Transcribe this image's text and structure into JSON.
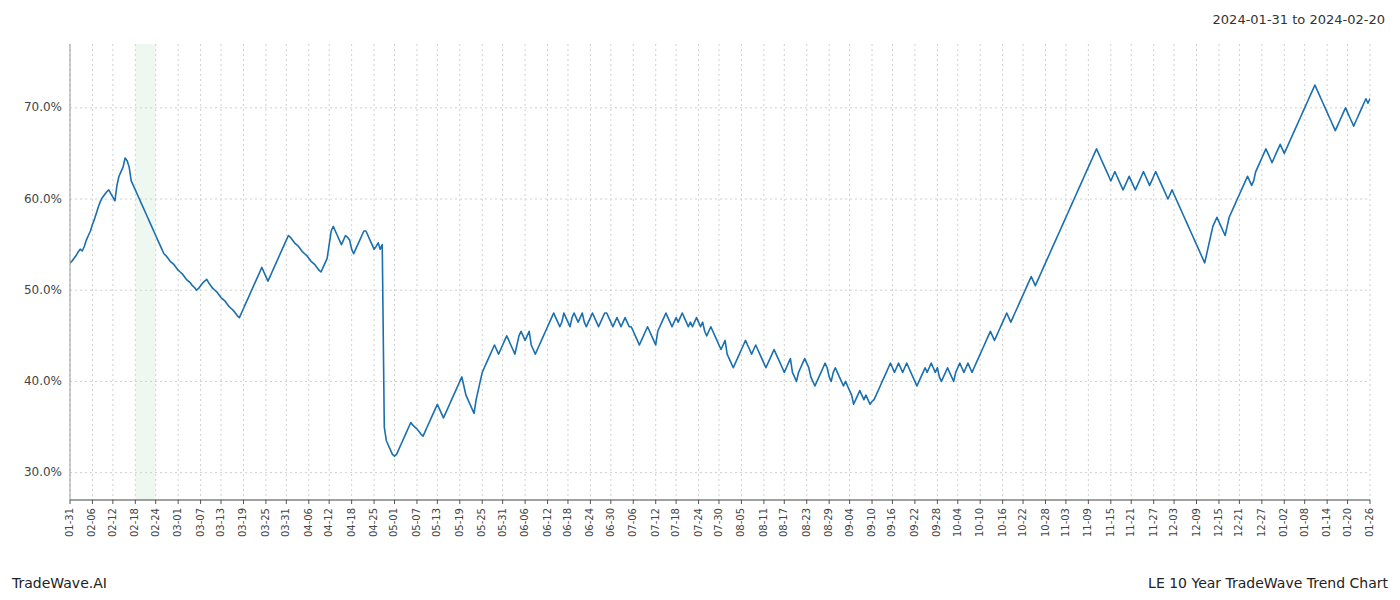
{
  "chart_data": {
    "type": "line",
    "title": "2024-01-31 to 2024-02-20",
    "annotations": [
      "TradeWave.AI",
      "LE 10 Year TradeWave Trend Chart"
    ],
    "color": "#1a6faf",
    "grid": true,
    "highlight": {
      "start": "02-18",
      "end": "02-24",
      "color": "#e8f5e9"
    },
    "ylim": [
      27.0,
      77.0
    ],
    "yticks": [
      {
        "value": 30,
        "label": "30.0%"
      },
      {
        "value": 40,
        "label": "40.0%"
      },
      {
        "value": 50,
        "label": "50.0%"
      },
      {
        "value": 60,
        "label": "60.0%"
      },
      {
        "value": 70,
        "label": "70.0%"
      }
    ],
    "categories": [
      "01-31",
      null,
      null,
      null,
      null,
      null,
      null,
      null,
      null,
      null,
      null,
      "02-06",
      null,
      null,
      null,
      null,
      null,
      null,
      null,
      null,
      null,
      "02-12",
      null,
      null,
      null,
      null,
      null,
      null,
      null,
      null,
      null,
      null,
      "02-18",
      null,
      null,
      null,
      null,
      null,
      null,
      null,
      null,
      null,
      "02-24",
      null,
      null,
      null,
      null,
      null,
      null,
      null,
      null,
      null,
      null,
      "03-01",
      null,
      null,
      null,
      null,
      null,
      null,
      null,
      null,
      null,
      null,
      "03-07",
      null,
      null,
      null,
      null,
      null,
      null,
      null,
      null,
      null,
      "03-13",
      null,
      null,
      null,
      null,
      null,
      null,
      null,
      null,
      null,
      null,
      "03-19",
      null,
      null,
      null,
      null,
      null,
      null,
      null,
      null,
      null,
      null,
      "03-25",
      null,
      null,
      null,
      null,
      null,
      null,
      null,
      null,
      null,
      "03-31",
      null,
      null,
      null,
      null,
      null,
      null,
      null,
      null,
      null,
      null,
      "04-06",
      null,
      null,
      null,
      null,
      null,
      null,
      null,
      null,
      null,
      "04-12",
      null,
      null,
      null,
      null,
      null,
      null,
      null,
      null,
      null,
      null,
      "04-18",
      null,
      null,
      null,
      null,
      null,
      null,
      null,
      null,
      null,
      null,
      "04-25",
      null,
      null,
      null,
      null,
      null,
      null,
      null,
      null,
      null,
      "05-01",
      null,
      null,
      null,
      null,
      null,
      null,
      null,
      null,
      null,
      null,
      "05-07",
      null,
      null,
      null,
      null,
      null,
      null,
      null,
      null,
      null,
      "05-13",
      null,
      null,
      null,
      null,
      null,
      null,
      null,
      null,
      null,
      null,
      "05-19",
      null,
      null,
      null,
      null,
      null,
      null,
      null,
      null,
      null,
      null,
      "05-25",
      null,
      null,
      null,
      null,
      null,
      null,
      null,
      null,
      null,
      "05-31",
      null,
      null,
      null,
      null,
      null,
      null,
      null,
      null,
      null,
      null,
      "06-06",
      null,
      null,
      null,
      null,
      null,
      null,
      null,
      null,
      null,
      null,
      "06-12",
      null,
      null,
      null,
      null,
      null,
      null,
      null,
      null,
      null,
      "06-18",
      null,
      null,
      null,
      null,
      null,
      null,
      null,
      null,
      null,
      null,
      "06-24",
      null,
      null,
      null,
      null,
      null,
      null,
      null,
      null,
      null,
      "06-30",
      null,
      null,
      null,
      null,
      null,
      null,
      null,
      null,
      null,
      null,
      "07-06",
      null,
      null,
      null,
      null,
      null,
      null,
      null,
      null,
      null,
      null,
      "07-12",
      null,
      null,
      null,
      null,
      null,
      null,
      null,
      null,
      null,
      "07-18",
      null,
      null,
      null,
      null,
      null,
      null,
      null,
      null,
      null,
      null,
      "07-24",
      null,
      null,
      null,
      null,
      null,
      null,
      null,
      null,
      null,
      "07-30",
      null,
      null,
      null,
      null,
      null,
      null,
      null,
      null,
      null,
      null,
      "08-05",
      null,
      null,
      null,
      null,
      null,
      null,
      null,
      null,
      null,
      null,
      "08-11",
      null,
      null,
      null,
      null,
      null,
      null,
      null,
      null,
      null,
      "08-17",
      null,
      null,
      null,
      null,
      null,
      null,
      null,
      null,
      null,
      null,
      "08-23",
      null,
      null,
      null,
      null,
      null,
      null,
      null,
      null,
      null,
      null,
      "08-29",
      null,
      null,
      null,
      null,
      null,
      null,
      null,
      null,
      null,
      "09-04",
      null,
      null,
      null,
      null,
      null,
      null,
      null,
      null,
      null,
      null,
      "09-10",
      null,
      null,
      null,
      null,
      null,
      null,
      null,
      null,
      null,
      "09-16",
      null,
      null,
      null,
      null,
      null,
      null,
      null,
      null,
      null,
      null,
      "09-22",
      null,
      null,
      null,
      null,
      null,
      null,
      null,
      null,
      null,
      null,
      "09-28",
      null,
      null,
      null,
      null,
      null,
      null,
      null,
      null,
      null,
      "10-04",
      null,
      null,
      null,
      null,
      null,
      null,
      null,
      null,
      null,
      null,
      "10-10",
      null,
      null,
      null,
      null,
      null,
      null,
      null,
      null,
      null,
      null,
      "10-16",
      null,
      null,
      null,
      null,
      null,
      null,
      null,
      null,
      null,
      "10-22",
      null,
      null,
      null,
      null,
      null,
      null,
      null,
      null,
      null,
      null,
      "10-28",
      null,
      null,
      null,
      null,
      null,
      null,
      null,
      null,
      null,
      "11-03",
      null,
      null,
      null,
      null,
      null,
      null,
      null,
      null,
      null,
      null,
      "11-09",
      null,
      null,
      null,
      null,
      null,
      null,
      null,
      null,
      null,
      null,
      "11-15",
      null,
      null,
      null,
      null,
      null,
      null,
      null,
      null,
      null,
      "11-21",
      null,
      null,
      null,
      null,
      null,
      null,
      null,
      null,
      null,
      null,
      "11-27",
      null,
      null,
      null,
      null,
      null,
      null,
      null,
      null,
      null,
      "12-03",
      null,
      null,
      null,
      null,
      null,
      null,
      null,
      null,
      null,
      null,
      "12-09",
      null,
      null,
      null,
      null,
      null,
      null,
      null,
      null,
      null,
      null,
      "12-15",
      null,
      null,
      null,
      null,
      null,
      null,
      null,
      null,
      null,
      "12-21",
      null,
      null,
      null,
      null,
      null,
      null,
      null,
      null,
      null,
      null,
      "12-27",
      null,
      null,
      null,
      null,
      null,
      null,
      null,
      null,
      null,
      null,
      "01-02",
      null,
      null,
      null,
      null,
      null,
      null,
      null,
      null,
      null,
      "01-08",
      null,
      null,
      null,
      null,
      null,
      null,
      null,
      null,
      null,
      null,
      "01-14",
      null,
      null,
      null,
      null,
      null,
      null,
      null,
      null,
      null,
      "01-20",
      null,
      null,
      null,
      null,
      null,
      null,
      null,
      null,
      null,
      null,
      "01-26"
    ],
    "values": [
      53.0,
      53.2,
      53.5,
      53.8,
      54.2,
      54.5,
      54.3,
      54.8,
      55.5,
      56.0,
      56.5,
      57.2,
      57.8,
      58.5,
      59.2,
      59.8,
      60.2,
      60.5,
      60.8,
      61.0,
      60.6,
      60.2,
      59.8,
      61.5,
      62.5,
      63.0,
      63.5,
      64.5,
      64.2,
      63.5,
      62.0,
      61.5,
      61.0,
      60.5,
      60.0,
      59.5,
      59.0,
      58.5,
      58.0,
      57.5,
      57.0,
      56.5,
      56.0,
      55.5,
      55.0,
      54.5,
      54.0,
      53.8,
      53.5,
      53.2,
      53.0,
      52.8,
      52.5,
      52.2,
      52.0,
      51.8,
      51.5,
      51.2,
      51.0,
      50.8,
      50.5,
      50.3,
      50.0,
      50.2,
      50.5,
      50.8,
      51.0,
      51.2,
      50.8,
      50.5,
      50.2,
      50.0,
      49.8,
      49.5,
      49.2,
      49.0,
      48.8,
      48.5,
      48.2,
      48.0,
      47.8,
      47.5,
      47.2,
      47.0,
      47.5,
      48.0,
      48.5,
      49.0,
      49.5,
      50.0,
      50.5,
      51.0,
      51.5,
      52.0,
      52.5,
      52.0,
      51.5,
      51.0,
      51.5,
      52.0,
      52.5,
      53.0,
      53.5,
      54.0,
      54.5,
      55.0,
      55.5,
      56.0,
      55.8,
      55.5,
      55.2,
      55.0,
      54.8,
      54.5,
      54.2,
      54.0,
      53.8,
      53.5,
      53.2,
      53.0,
      52.8,
      52.5,
      52.2,
      52.0,
      52.5,
      53.0,
      53.5,
      55.0,
      56.5,
      57.0,
      56.5,
      56.0,
      55.5,
      55.0,
      55.5,
      56.0,
      55.8,
      55.5,
      54.5,
      54.0,
      54.5,
      55.0,
      55.5,
      56.0,
      56.5,
      56.5,
      56.0,
      55.5,
      55.0,
      54.5,
      54.8,
      55.2,
      54.5,
      55.0,
      35.0,
      33.5,
      33.0,
      32.5,
      32.0,
      31.8,
      32.0,
      32.5,
      33.0,
      33.5,
      34.0,
      34.5,
      35.0,
      35.5,
      35.2,
      35.0,
      34.8,
      34.5,
      34.2,
      34.0,
      34.5,
      35.0,
      35.5,
      36.0,
      36.5,
      37.0,
      37.5,
      37.0,
      36.5,
      36.0,
      36.5,
      37.0,
      37.5,
      38.0,
      38.5,
      39.0,
      39.5,
      40.0,
      40.5,
      39.5,
      38.5,
      38.0,
      37.5,
      37.0,
      36.5,
      38.0,
      39.0,
      40.0,
      41.0,
      41.5,
      42.0,
      42.5,
      43.0,
      43.5,
      44.0,
      43.5,
      43.0,
      43.5,
      44.0,
      44.5,
      45.0,
      44.5,
      44.0,
      43.5,
      43.0,
      44.0,
      45.0,
      45.5,
      45.0,
      44.5,
      45.0,
      45.5,
      44.0,
      43.5,
      43.0,
      43.5,
      44.0,
      44.5,
      45.0,
      45.5,
      46.0,
      46.5,
      47.0,
      47.5,
      47.0,
      46.5,
      46.0,
      46.5,
      47.5,
      47.0,
      46.5,
      46.0,
      47.0,
      47.5,
      47.0,
      46.5,
      47.0,
      47.5,
      46.5,
      46.0,
      46.5,
      47.0,
      47.5,
      47.0,
      46.5,
      46.0,
      46.5,
      47.0,
      47.5,
      47.5,
      47.0,
      46.5,
      46.0,
      46.5,
      47.0,
      46.5,
      46.0,
      46.5,
      47.0,
      46.5,
      46.0,
      46.0,
      45.5,
      45.0,
      44.5,
      44.0,
      44.5,
      45.0,
      45.5,
      46.0,
      45.5,
      45.0,
      44.5,
      44.0,
      45.5,
      46.0,
      46.5,
      47.0,
      47.5,
      47.0,
      46.5,
      46.0,
      46.5,
      47.0,
      46.5,
      47.0,
      47.5,
      47.0,
      46.5,
      46.0,
      46.5,
      46.0,
      46.5,
      47.0,
      46.5,
      46.0,
      46.5,
      45.5,
      45.0,
      45.5,
      46.0,
      45.5,
      45.0,
      44.5,
      44.0,
      43.5,
      44.0,
      44.5,
      43.0,
      42.5,
      42.0,
      41.5,
      42.0,
      42.5,
      43.0,
      43.5,
      44.0,
      44.5,
      44.0,
      43.5,
      43.0,
      43.5,
      44.0,
      43.5,
      43.0,
      42.5,
      42.0,
      41.5,
      42.0,
      42.5,
      43.0,
      43.5,
      43.0,
      42.5,
      42.0,
      41.5,
      41.0,
      41.5,
      42.0,
      42.5,
      41.0,
      40.5,
      40.0,
      41.0,
      41.5,
      42.0,
      42.5,
      42.0,
      41.5,
      40.5,
      40.0,
      39.5,
      40.0,
      40.5,
      41.0,
      41.5,
      42.0,
      41.5,
      40.5,
      40.0,
      41.0,
      41.5,
      41.0,
      40.5,
      40.0,
      39.5,
      40.0,
      39.5,
      39.0,
      38.5,
      37.5,
      38.0,
      38.5,
      39.0,
      38.5,
      38.0,
      38.5,
      38.0,
      37.5,
      37.8,
      38.0,
      38.5,
      39.0,
      39.5,
      40.0,
      40.5,
      41.0,
      41.5,
      42.0,
      41.5,
      41.0,
      41.5,
      42.0,
      41.5,
      41.0,
      41.5,
      42.0,
      41.5,
      41.0,
      40.5,
      40.0,
      39.5,
      40.0,
      40.5,
      41.0,
      41.5,
      41.0,
      41.5,
      42.0,
      41.5,
      41.0,
      41.5,
      40.5,
      40.0,
      40.5,
      41.0,
      41.5,
      41.0,
      40.5,
      40.0,
      41.0,
      41.5,
      42.0,
      41.5,
      41.0,
      41.5,
      42.0,
      41.5,
      41.0,
      41.5,
      42.0,
      42.5,
      43.0,
      43.5,
      44.0,
      44.5,
      45.0,
      45.5,
      45.0,
      44.5,
      45.0,
      45.5,
      46.0,
      46.5,
      47.0,
      47.5,
      47.0,
      46.5,
      47.0,
      47.5,
      48.0,
      48.5,
      49.0,
      49.5,
      50.0,
      50.5,
      51.0,
      51.5,
      51.0,
      50.5,
      51.0,
      51.5,
      52.0,
      52.5,
      53.0,
      53.5,
      54.0,
      54.5,
      55.0,
      55.5,
      56.0,
      56.5,
      57.0,
      57.5,
      58.0,
      58.5,
      59.0,
      59.5,
      60.0,
      60.5,
      61.0,
      61.5,
      62.0,
      62.5,
      63.0,
      63.5,
      64.0,
      64.5,
      65.0,
      65.5,
      65.0,
      64.5,
      64.0,
      63.5,
      63.0,
      62.5,
      62.0,
      62.5,
      63.0,
      62.5,
      62.0,
      61.5,
      61.0,
      61.5,
      62.0,
      62.5,
      62.0,
      61.5,
      61.0,
      61.5,
      62.0,
      62.5,
      63.0,
      62.5,
      62.0,
      61.5,
      62.0,
      62.5,
      63.0,
      62.5,
      62.0,
      61.5,
      61.0,
      60.5,
      60.0,
      60.5,
      61.0,
      60.5,
      60.0,
      59.5,
      59.0,
      58.5,
      58.0,
      57.5,
      57.0,
      56.5,
      56.0,
      55.5,
      55.0,
      54.5,
      54.0,
      53.5,
      53.0,
      54.0,
      55.0,
      56.0,
      57.0,
      57.5,
      58.0,
      57.5,
      57.0,
      56.5,
      56.0,
      57.0,
      58.0,
      58.5,
      59.0,
      59.5,
      60.0,
      60.5,
      61.0,
      61.5,
      62.0,
      62.5,
      62.0,
      61.5,
      62.0,
      63.0,
      63.5,
      64.0,
      64.5,
      65.0,
      65.5,
      65.0,
      64.5,
      64.0,
      64.5,
      65.0,
      65.5,
      66.0,
      65.5,
      65.0,
      65.5,
      66.0,
      66.5,
      67.0,
      67.5,
      68.0,
      68.5,
      69.0,
      69.5,
      70.0,
      70.5,
      71.0,
      71.5,
      72.0,
      72.5,
      72.0,
      71.5,
      71.0,
      70.5,
      70.0,
      69.5,
      69.0,
      68.5,
      68.0,
      67.5,
      68.0,
      68.5,
      69.0,
      69.5,
      70.0,
      69.5,
      69.0,
      68.5,
      68.0,
      68.5,
      69.0,
      69.5,
      70.0,
      70.5,
      71.0,
      70.5,
      71.0
    ]
  }
}
